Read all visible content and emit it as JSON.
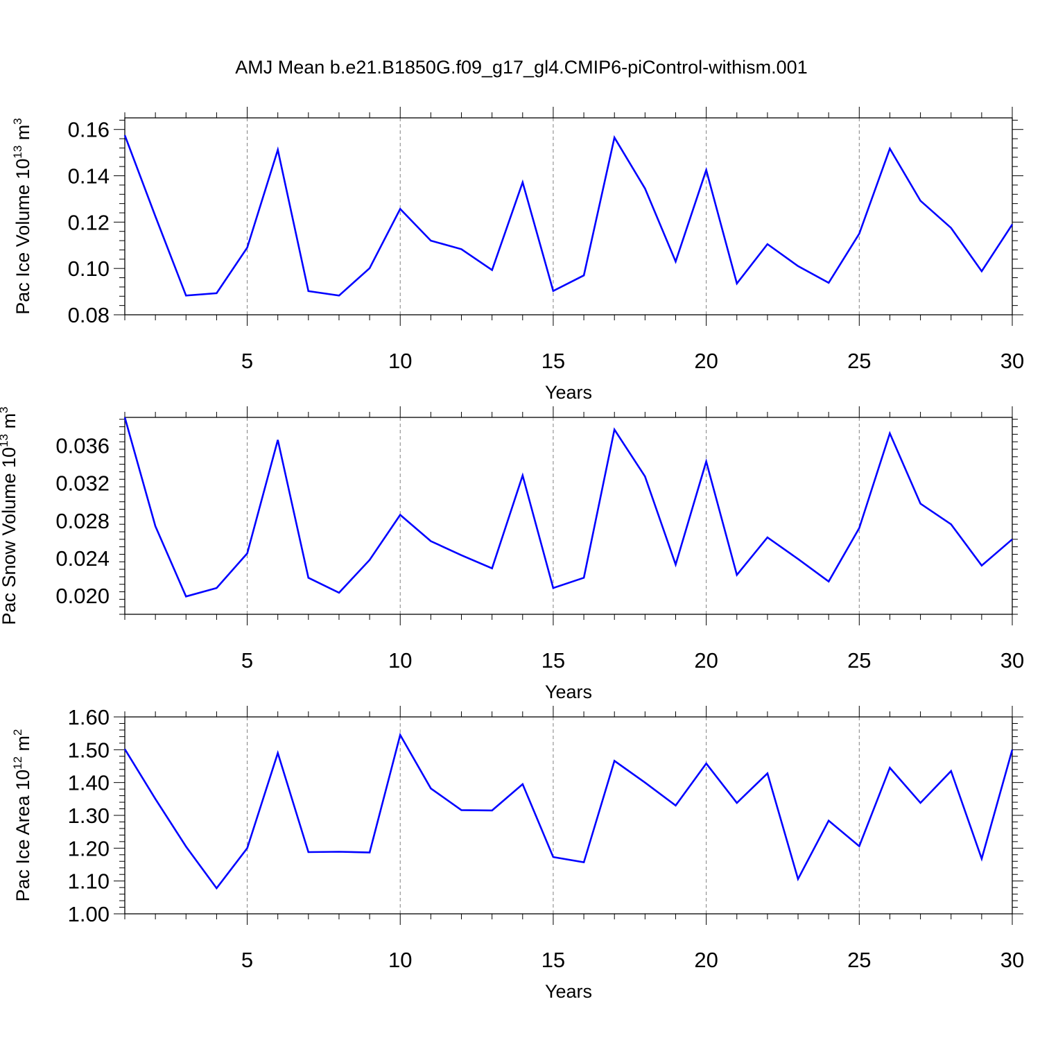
{
  "title": "AMJ Mean b.e21.B1850G.f09_g17_gl4.CMIP6-piControl-withism.001",
  "colors": {
    "line": "#0000ff",
    "axis": "#000000",
    "grid": "#808080"
  },
  "chart_data": [
    {
      "type": "line",
      "ylabel": "Pac Ice Volume 10",
      "ylabel_exp": "13",
      "ylabel_unit": " m",
      "ylabel_unit_exp": "3",
      "xlabel": "Years",
      "xlim": [
        1,
        30
      ],
      "ylim": [
        0.08,
        0.165
      ],
      "xticks": [
        5,
        10,
        15,
        20,
        25,
        30
      ],
      "yticks": [
        0.08,
        0.1,
        0.12,
        0.14,
        0.16
      ],
      "ytick_labels": [
        "0.08",
        "0.10",
        "0.12",
        "0.14",
        "0.16"
      ],
      "grid": "vertical dashed at major x ticks",
      "x": [
        1,
        2,
        3,
        4,
        5,
        6,
        7,
        8,
        9,
        10,
        11,
        12,
        13,
        14,
        15,
        16,
        17,
        18,
        19,
        20,
        21,
        22,
        23,
        24,
        25,
        26,
        27,
        28,
        29,
        30
      ],
      "series": [
        {
          "values": [
            0.1575,
            0.1225,
            0.0883,
            0.0893,
            0.109,
            0.1512,
            0.0902,
            0.0883,
            0.1001,
            0.1257,
            0.112,
            0.1083,
            0.0993,
            0.1372,
            0.0903,
            0.097,
            0.1565,
            0.1345,
            0.103,
            0.1425,
            0.0935,
            0.1105,
            0.101,
            0.0938,
            0.115,
            0.1517,
            0.1292,
            0.1175,
            0.0988,
            0.119
          ]
        }
      ]
    },
    {
      "type": "line",
      "ylabel": "Pac Snow Volume 10",
      "ylabel_exp": "13",
      "ylabel_unit": " m",
      "ylabel_unit_exp": "3",
      "xlabel": "Years",
      "xlim": [
        1,
        30
      ],
      "ylim": [
        0.018,
        0.039
      ],
      "xticks": [
        5,
        10,
        15,
        20,
        25,
        30
      ],
      "yticks": [
        0.02,
        0.024,
        0.028,
        0.032,
        0.036
      ],
      "ytick_labels": [
        "0.020",
        "0.024",
        "0.028",
        "0.032",
        "0.036"
      ],
      "grid": "vertical dashed at major x ticks",
      "x": [
        1,
        2,
        3,
        4,
        5,
        6,
        7,
        8,
        9,
        10,
        11,
        12,
        13,
        14,
        15,
        16,
        17,
        18,
        19,
        20,
        21,
        22,
        23,
        24,
        25,
        26,
        27,
        28,
        29,
        30
      ],
      "series": [
        {
          "values": [
            0.039,
            0.0274,
            0.0199,
            0.0208,
            0.0245,
            0.0366,
            0.0219,
            0.0203,
            0.0238,
            0.0286,
            0.0258,
            0.0243,
            0.0229,
            0.0328,
            0.0208,
            0.0219,
            0.0377,
            0.0327,
            0.0233,
            0.0343,
            0.0222,
            0.0262,
            0.0239,
            0.0215,
            0.0272,
            0.0373,
            0.0298,
            0.0276,
            0.0232,
            0.026
          ]
        }
      ]
    },
    {
      "type": "line",
      "ylabel": "Pac Ice Area 10",
      "ylabel_exp": "12",
      "ylabel_unit": " m",
      "ylabel_unit_exp": "2",
      "xlabel": "Years",
      "xlim": [
        1,
        30
      ],
      "ylim": [
        1.0,
        1.6
      ],
      "xticks": [
        5,
        10,
        15,
        20,
        25,
        30
      ],
      "yticks": [
        1.0,
        1.1,
        1.2,
        1.3,
        1.4,
        1.5,
        1.6
      ],
      "ytick_labels": [
        "1.00",
        "1.10",
        "1.20",
        "1.30",
        "1.40",
        "1.50",
        "1.60"
      ],
      "grid": "vertical dashed at major x ticks",
      "x": [
        1,
        2,
        3,
        4,
        5,
        6,
        7,
        8,
        9,
        10,
        11,
        12,
        13,
        14,
        15,
        16,
        17,
        18,
        19,
        20,
        21,
        22,
        23,
        24,
        25,
        26,
        27,
        28,
        29,
        30
      ],
      "series": [
        {
          "values": [
            1.502,
            1.35,
            1.205,
            1.078,
            1.2,
            1.49,
            1.188,
            1.189,
            1.187,
            1.545,
            1.382,
            1.316,
            1.315,
            1.395,
            1.173,
            1.157,
            1.466,
            1.4,
            1.33,
            1.458,
            1.338,
            1.428,
            1.106,
            1.284,
            1.206,
            1.445,
            1.338,
            1.435,
            1.168,
            1.5
          ]
        }
      ]
    }
  ]
}
